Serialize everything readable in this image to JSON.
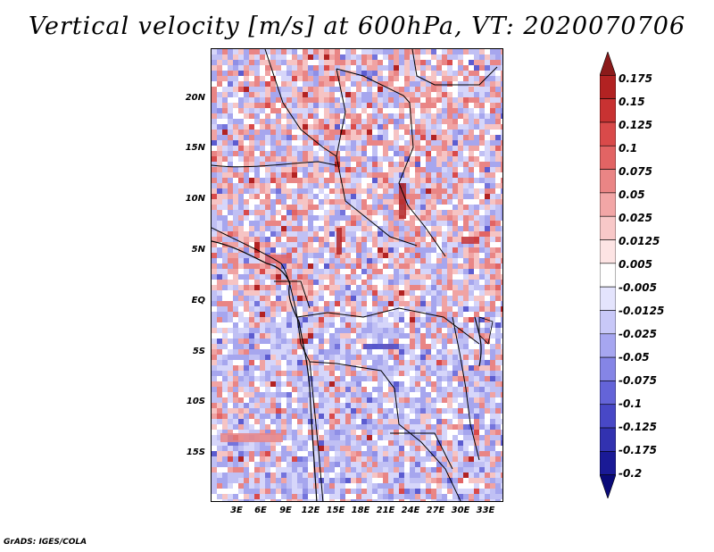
{
  "title": "Vertical velocity [m/s] at 600hPa, VT: 2020070706",
  "lat_ticks": [
    "20N",
    "15N",
    "10N",
    "5N",
    "EQ",
    "5S",
    "10S",
    "15S"
  ],
  "lon_ticks": [
    "3E",
    "6E",
    "9E",
    "12E",
    "15E",
    "18E",
    "21E",
    "24E",
    "27E",
    "30E",
    "33E"
  ],
  "colorbar": {
    "labels": [
      "0.175",
      "0.15",
      "0.125",
      "0.1",
      "0.075",
      "0.05",
      "0.025",
      "0.0125",
      "0.005",
      "-0.005",
      "-0.0125",
      "-0.025",
      "-0.05",
      "-0.075",
      "-0.1",
      "-0.125",
      "-0.175",
      "-0.2"
    ],
    "colors": [
      "#8b1a1a",
      "#b22222",
      "#c83232",
      "#d94a4a",
      "#e26464",
      "#ea8585",
      "#f2a6a6",
      "#f8c8c8",
      "#fde4e4",
      "#ffffff",
      "#e4e4fd",
      "#c8c8f8",
      "#a6a6f0",
      "#8585e6",
      "#6464d8",
      "#4848c6",
      "#3232b0",
      "#1a1a96",
      "#0a0a78"
    ]
  },
  "credit": "GrADS: IGES/COLA"
}
